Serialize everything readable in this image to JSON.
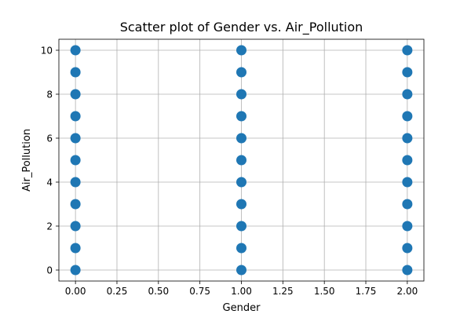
{
  "chart_data": {
    "type": "scatter",
    "title": "Scatter plot of Gender vs. Air_Pollution",
    "xlabel": "Gender",
    "ylabel": "Air_Pollution",
    "xlim": [
      -0.1,
      2.1
    ],
    "ylim": [
      -0.5,
      10.5
    ],
    "xticks": [
      0.0,
      0.25,
      0.5,
      0.75,
      1.0,
      1.25,
      1.5,
      1.75,
      2.0
    ],
    "xtick_labels": [
      "0.00",
      "0.25",
      "0.50",
      "0.75",
      "1.00",
      "1.25",
      "1.50",
      "1.75",
      "2.00"
    ],
    "yticks": [
      0,
      2,
      4,
      6,
      8,
      10
    ],
    "ytick_labels": [
      "0",
      "2",
      "4",
      "6",
      "8",
      "10"
    ],
    "grid": true,
    "marker_color": "#1f77b4",
    "series": [
      {
        "x": [
          0,
          0,
          0,
          0,
          0,
          0,
          0,
          0,
          0,
          0,
          0,
          1,
          1,
          1,
          1,
          1,
          1,
          1,
          1,
          1,
          1,
          1,
          2,
          2,
          2,
          2,
          2,
          2,
          2,
          2,
          2,
          2,
          2
        ],
        "y": [
          0,
          1,
          2,
          3,
          4,
          5,
          6,
          7,
          8,
          9,
          10,
          0,
          1,
          2,
          3,
          4,
          5,
          6,
          7,
          8,
          9,
          10,
          0,
          1,
          2,
          3,
          4,
          5,
          6,
          7,
          8,
          9,
          10
        ]
      }
    ]
  }
}
